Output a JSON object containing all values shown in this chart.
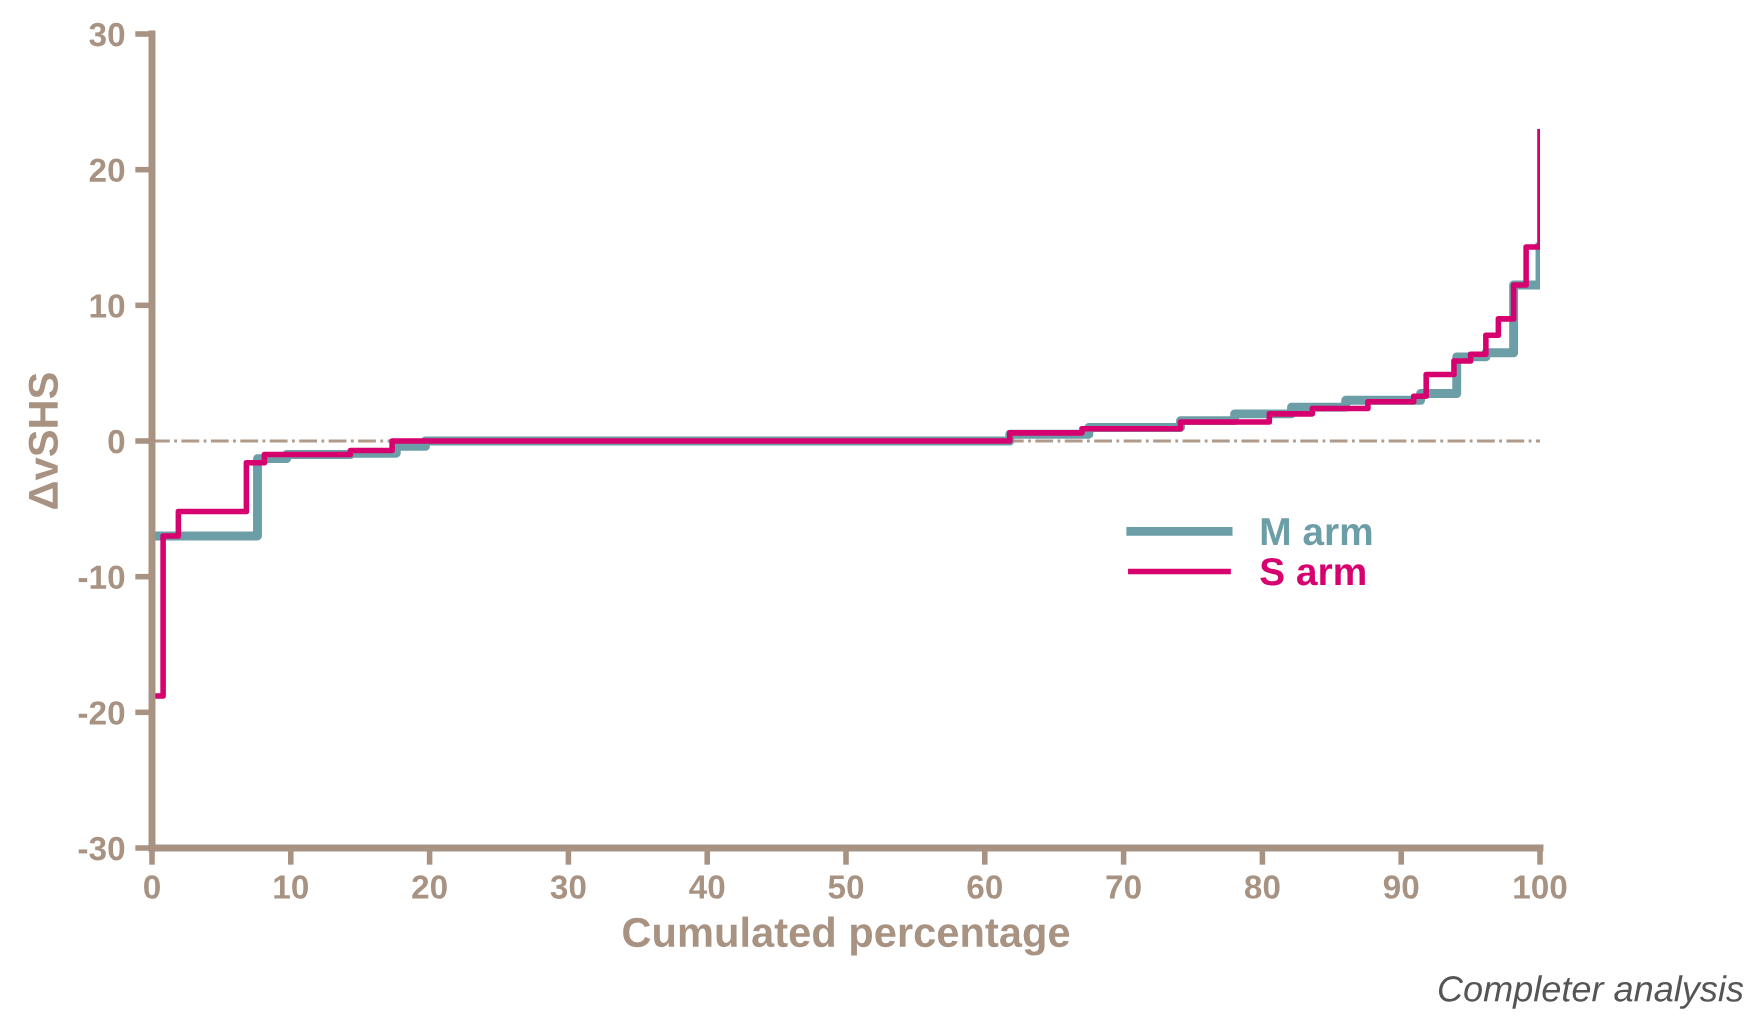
{
  "chart_data": {
    "type": "step",
    "xlabel": "Cumulated percentage",
    "ylabel": "ΔvSHS",
    "xlim": [
      0,
      100
    ],
    "ylim": [
      -30,
      30
    ],
    "xticks": [
      0,
      10,
      20,
      30,
      40,
      50,
      60,
      70,
      80,
      90,
      100
    ],
    "yticks": [
      -30,
      -20,
      -10,
      0,
      10,
      20,
      30
    ],
    "grid": false,
    "legend": "right",
    "marker": "none",
    "line_style": "solid",
    "ref_lines": [
      {
        "axis": "y",
        "value": 0,
        "color": "#b09a8a",
        "line_style": "dashdot"
      }
    ],
    "annotations": [
      "Completer analysis"
    ],
    "series": [
      {
        "name": "M arm",
        "color": "#6b9ea6",
        "x": [
          0,
          7.6,
          9.7,
          14.3,
          17.6,
          19.7,
          61.8,
          67.5,
          74.1,
          78.0,
          82.1,
          86.0,
          91.4,
          94.0,
          96.1,
          98.1,
          100
        ],
        "values": [
          -7,
          -1.3,
          -1.0,
          -0.9,
          -0.4,
          0,
          0.5,
          1.0,
          1.5,
          2.0,
          2.5,
          3.0,
          3.5,
          6.2,
          6.5,
          11.5,
          14.3
        ]
      },
      {
        "name": "S arm",
        "color": "#d6006e",
        "x": [
          0,
          0.8,
          1.9,
          6.8,
          8.1,
          14.3,
          17.3,
          61.8,
          67.0,
          74.1,
          80.5,
          83.6,
          87.6,
          90.9,
          91.8,
          93.8,
          95.0,
          96.1,
          97.0,
          98.1,
          99.0,
          100
        ],
        "values": [
          -18.8,
          -7,
          -5.2,
          -1.6,
          -1.0,
          -0.7,
          0,
          0.6,
          0.9,
          1.4,
          2.0,
          2.4,
          2.9,
          3.3,
          4.9,
          5.9,
          6.4,
          7.8,
          9.0,
          11.5,
          14.3,
          22.8
        ]
      }
    ]
  }
}
